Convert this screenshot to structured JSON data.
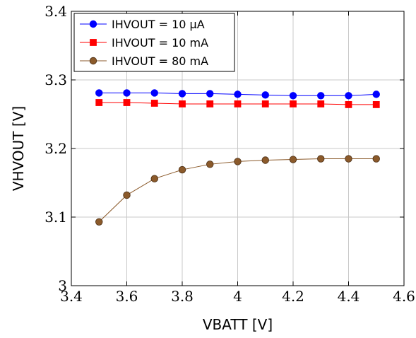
{
  "chart_data": {
    "type": "line",
    "xlabel": "VBATT [V]",
    "ylabel": "VHVOUT [V]",
    "xlim": [
      3.4,
      4.6
    ],
    "ylim": [
      3.0,
      3.4
    ],
    "xticks": [
      "3.4",
      "3.6",
      "3.8",
      "4",
      "4.2",
      "4.4",
      "4.6"
    ],
    "yticks": [
      "3",
      "3.1",
      "3.2",
      "3.3",
      "3.4"
    ],
    "xtick_values": [
      3.4,
      3.6,
      3.8,
      4.0,
      4.2,
      4.4,
      4.6
    ],
    "ytick_values": [
      3.0,
      3.1,
      3.2,
      3.3,
      3.4
    ],
    "grid": true,
    "legend_position": "top-left",
    "x": [
      3.5,
      3.6,
      3.7,
      3.8,
      3.9,
      4.0,
      4.1,
      4.2,
      4.3,
      4.4,
      4.5
    ],
    "series": [
      {
        "name": "IHVOUT = 10 µA",
        "color": "#0000ff",
        "marker": "circle",
        "values": [
          3.281,
          3.281,
          3.281,
          3.28,
          3.28,
          3.279,
          3.278,
          3.277,
          3.277,
          3.277,
          3.279
        ]
      },
      {
        "name": "IHVOUT = 10 mA",
        "color": "#ff0000",
        "marker": "square",
        "values": [
          3.267,
          3.267,
          3.266,
          3.265,
          3.265,
          3.265,
          3.265,
          3.265,
          3.265,
          3.264,
          3.264
        ]
      },
      {
        "name": "IHVOUT = 80 mA",
        "color": "#8b5a2b",
        "marker": "circle",
        "values": [
          3.093,
          3.132,
          3.156,
          3.169,
          3.177,
          3.181,
          3.183,
          3.184,
          3.185,
          3.185,
          3.185
        ]
      }
    ]
  }
}
